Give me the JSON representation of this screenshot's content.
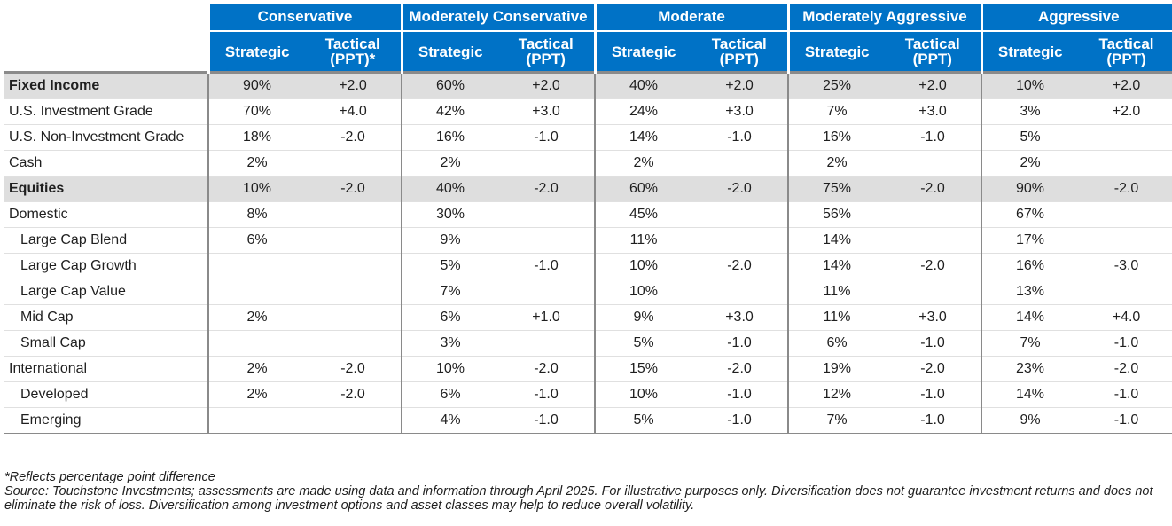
{
  "profiles": [
    "Conservative",
    "Moderately Conservative",
    "Moderate",
    "Moderately Aggressive",
    "Aggressive"
  ],
  "subheaders": {
    "strategic": "Strategic",
    "tactical": "Tactical (PPT)",
    "tactical_first": "Tactical (PPT)*"
  },
  "rows": [
    {
      "label": "Fixed Income",
      "group": true,
      "indent": false,
      "cells": [
        "90%",
        "+2.0",
        "60%",
        "+2.0",
        "40%",
        "+2.0",
        "25%",
        "+2.0",
        "10%",
        "+2.0"
      ]
    },
    {
      "label": "U.S. Investment Grade",
      "group": false,
      "indent": false,
      "cells": [
        "70%",
        "+4.0",
        "42%",
        "+3.0",
        "24%",
        "+3.0",
        "7%",
        "+3.0",
        "3%",
        "+2.0"
      ]
    },
    {
      "label": "U.S. Non-Investment Grade",
      "group": false,
      "indent": false,
      "cells": [
        "18%",
        "-2.0",
        "16%",
        "-1.0",
        "14%",
        "-1.0",
        "16%",
        "-1.0",
        "5%",
        ""
      ]
    },
    {
      "label": "Cash",
      "group": false,
      "indent": false,
      "cells": [
        "2%",
        "",
        "2%",
        "",
        "2%",
        "",
        "2%",
        "",
        "2%",
        ""
      ]
    },
    {
      "label": "Equities",
      "group": true,
      "indent": false,
      "cells": [
        "10%",
        "-2.0",
        "40%",
        "-2.0",
        "60%",
        "-2.0",
        "75%",
        "-2.0",
        "90%",
        "-2.0"
      ]
    },
    {
      "label": "Domestic",
      "group": false,
      "indent": false,
      "cells": [
        "8%",
        "",
        "30%",
        "",
        "45%",
        "",
        "56%",
        "",
        "67%",
        ""
      ]
    },
    {
      "label": "Large Cap Blend",
      "group": false,
      "indent": true,
      "cells": [
        "6%",
        "",
        "9%",
        "",
        "11%",
        "",
        "14%",
        "",
        "17%",
        ""
      ]
    },
    {
      "label": "Large Cap Growth",
      "group": false,
      "indent": true,
      "cells": [
        "",
        "",
        "5%",
        "-1.0",
        "10%",
        "-2.0",
        "14%",
        "-2.0",
        "16%",
        "-3.0"
      ]
    },
    {
      "label": "Large Cap Value",
      "group": false,
      "indent": true,
      "cells": [
        "",
        "",
        "7%",
        "",
        "10%",
        "",
        "11%",
        "",
        "13%",
        ""
      ]
    },
    {
      "label": "Mid Cap",
      "group": false,
      "indent": true,
      "cells": [
        "2%",
        "",
        "6%",
        "+1.0",
        "9%",
        "+3.0",
        "11%",
        "+3.0",
        "14%",
        "+4.0"
      ]
    },
    {
      "label": "Small Cap",
      "group": false,
      "indent": true,
      "cells": [
        "",
        "",
        "3%",
        "",
        "5%",
        "-1.0",
        "6%",
        "-1.0",
        "7%",
        "-1.0"
      ]
    },
    {
      "label": "International",
      "group": false,
      "indent": false,
      "cells": [
        "2%",
        "-2.0",
        "10%",
        "-2.0",
        "15%",
        "-2.0",
        "19%",
        "-2.0",
        "23%",
        "-2.0"
      ]
    },
    {
      "label": "Developed",
      "group": false,
      "indent": true,
      "cells": [
        "2%",
        "-2.0",
        "6%",
        "-1.0",
        "10%",
        "-1.0",
        "12%",
        "-1.0",
        "14%",
        "-1.0"
      ]
    },
    {
      "label": "Emerging",
      "group": false,
      "indent": true,
      "cells": [
        "",
        "",
        "4%",
        "-1.0",
        "5%",
        "-1.0",
        "7%",
        "-1.0",
        "9%",
        "-1.0"
      ]
    }
  ],
  "footnotes": {
    "asterisk": "*Reflects percentage point difference",
    "source": "Source: Touchstone Investments; assessments are made using data and information through April 2025. For illustrative purposes only. Diversification does not guarantee investment returns and does not eliminate the risk of loss. Diversification among investment options and asset classes may help to reduce overall volatility."
  },
  "colors": {
    "header_bg": "#0072c6",
    "group_row_bg": "#dedede",
    "header_text": "#ffffff"
  }
}
